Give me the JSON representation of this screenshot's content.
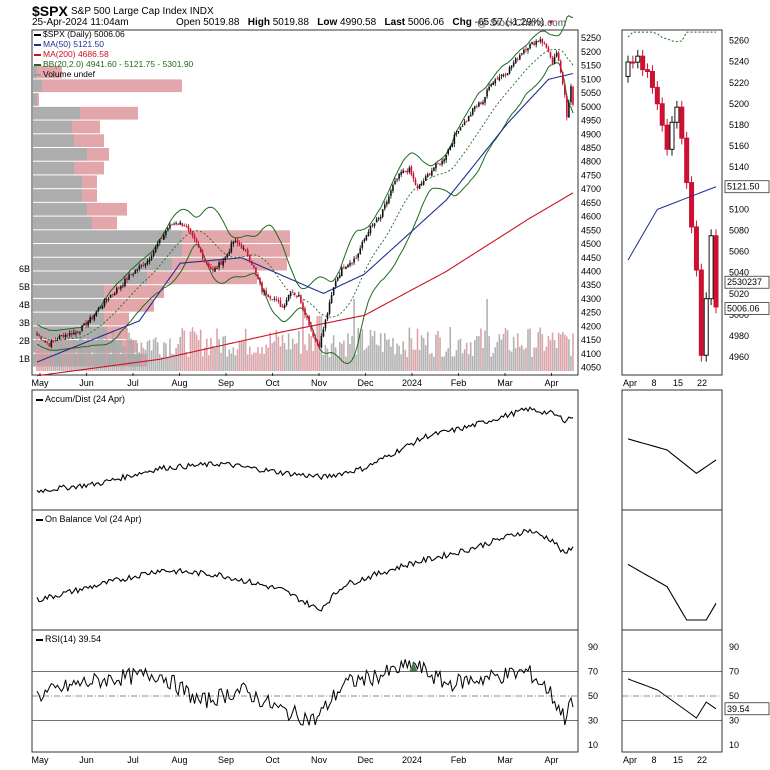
{
  "header": {
    "ticker": "$SPX",
    "description": "S&P 500 Large Cap Index",
    "exchange": "INDX",
    "datetime": "25-Apr-2024 11:04am",
    "open_label": "Open",
    "open": "5019.88",
    "high_label": "High",
    "high": "5019.88",
    "low_label": "Low",
    "low": "4990.58",
    "last_label": "Last",
    "last": "5006.06",
    "chg_label": "Chg",
    "chg": "-65.57 (-1.29%)",
    "chg_arrow": "▼",
    "watermark": "@ StockCharts.com"
  },
  "legend": [
    {
      "text": "$SPX (Daily) 5006.06",
      "color": "#000000"
    },
    {
      "text": "MA(50) 5121.50",
      "color": "#1f2f8f"
    },
    {
      "text": "MA(200) 4686.58",
      "color": "#cc1122"
    },
    {
      "text": "BB(20,2.0) 4941.60 - 5121.75 - 5301.90",
      "color": "#1e6b1e"
    },
    {
      "text": "Volume undef",
      "color": "#999999"
    }
  ],
  "panel_titles": {
    "ad": "Accum/Dist (24 Apr)",
    "obv": "On Balance Vol (24 Apr)",
    "rsi": "RSI(14) 39.54"
  },
  "value_tags": {
    "ma50": "5121.50",
    "last": "5006.06",
    "volume": "2530237"
  },
  "colors": {
    "up": "#111111",
    "down": "#cc1133",
    "ma50": "#1f2f8f",
    "ma200": "#cc1122",
    "bb": "#1e6b1e",
    "vol_up": "#aaaaaa",
    "vol_down": "#d89aa0"
  },
  "chart_data": {
    "type": "line",
    "title": "$SPX S&P 500 Large Cap Index",
    "x_labels_main": [
      "May",
      "Jun",
      "Jul",
      "Aug",
      "Sep",
      "Oct",
      "Nov",
      "Dec",
      "2024",
      "Feb",
      "Mar",
      "Apr"
    ],
    "x_labels_zoom": [
      "Apr",
      "8",
      "15",
      "22"
    ],
    "price_axis": {
      "min": 4030,
      "max": 5280,
      "ticks": [
        4050,
        4100,
        4150,
        4200,
        4250,
        4300,
        4350,
        4400,
        4450,
        4500,
        4550,
        4600,
        4650,
        4700,
        4750,
        4800,
        4850,
        4900,
        4950,
        5000,
        5050,
        5100,
        5150,
        5200,
        5250
      ]
    },
    "zoom_axis": {
      "min": 4945,
      "max": 5270,
      "ticks": [
        4960,
        4980,
        5000,
        5020,
        5040,
        5060,
        5080,
        5100,
        5120,
        5140,
        5160,
        5180,
        5200,
        5220,
        5240,
        5260
      ]
    },
    "volume_axis_labels": [
      "1B",
      "2B",
      "3B",
      "4B",
      "5B",
      "6B"
    ],
    "rsi_ticks": [
      10,
      30,
      50,
      70,
      90
    ],
    "close_anchors": [
      [
        0,
        4170
      ],
      [
        6,
        4135
      ],
      [
        12,
        4165
      ],
      [
        20,
        4180
      ],
      [
        26,
        4225
      ],
      [
        34,
        4300
      ],
      [
        40,
        4340
      ],
      [
        46,
        4390
      ],
      [
        54,
        4440
      ],
      [
        60,
        4510
      ],
      [
        64,
        4560
      ],
      [
        68,
        4580
      ],
      [
        72,
        4570
      ],
      [
        78,
        4500
      ],
      [
        82,
        4440
      ],
      [
        86,
        4400
      ],
      [
        92,
        4450
      ],
      [
        96,
        4510
      ],
      [
        100,
        4490
      ],
      [
        104,
        4450
      ],
      [
        110,
        4330
      ],
      [
        116,
        4300
      ],
      [
        120,
        4270
      ],
      [
        124,
        4330
      ],
      [
        128,
        4310
      ],
      [
        132,
        4230
      ],
      [
        136,
        4150
      ],
      [
        138,
        4130
      ],
      [
        142,
        4250
      ],
      [
        146,
        4370
      ],
      [
        150,
        4420
      ],
      [
        156,
        4450
      ],
      [
        162,
        4550
      ],
      [
        168,
        4600
      ],
      [
        174,
        4710
      ],
      [
        178,
        4760
      ],
      [
        182,
        4770
      ],
      [
        186,
        4700
      ],
      [
        190,
        4740
      ],
      [
        194,
        4780
      ],
      [
        198,
        4800
      ],
      [
        202,
        4860
      ],
      [
        206,
        4920
      ],
      [
        210,
        4950
      ],
      [
        214,
        5000
      ],
      [
        218,
        5020
      ],
      [
        222,
        5090
      ],
      [
        226,
        5110
      ],
      [
        230,
        5130
      ],
      [
        234,
        5170
      ],
      [
        238,
        5210
      ],
      [
        242,
        5230
      ],
      [
        246,
        5248
      ],
      [
        250,
        5205
      ],
      [
        252,
        5150
      ],
      [
        254,
        5199
      ],
      [
        256,
        5120
      ],
      [
        258,
        5050
      ],
      [
        259,
        4967
      ],
      [
        260,
        5022
      ],
      [
        261,
        5071
      ],
      [
        262,
        5006
      ]
    ],
    "ma50_anchors": [
      [
        0,
        4070
      ],
      [
        50,
        4220
      ],
      [
        70,
        4430
      ],
      [
        100,
        4450
      ],
      [
        140,
        4320
      ],
      [
        160,
        4390
      ],
      [
        200,
        4660
      ],
      [
        230,
        4940
      ],
      [
        250,
        5100
      ],
      [
        262,
        5121.5
      ]
    ],
    "ma200_anchors": [
      [
        0,
        4020
      ],
      [
        60,
        4080
      ],
      [
        120,
        4180
      ],
      [
        160,
        4240
      ],
      [
        200,
        4400
      ],
      [
        240,
        4590
      ],
      [
        262,
        4686.58
      ]
    ],
    "rsi_anchors": [
      [
        0,
        50
      ],
      [
        20,
        60
      ],
      [
        40,
        65
      ],
      [
        60,
        68
      ],
      [
        80,
        45
      ],
      [
        100,
        55
      ],
      [
        120,
        38
      ],
      [
        136,
        30
      ],
      [
        150,
        60
      ],
      [
        170,
        68
      ],
      [
        184,
        76
      ],
      [
        200,
        60
      ],
      [
        220,
        65
      ],
      [
        240,
        70
      ],
      [
        250,
        55
      ],
      [
        258,
        32
      ],
      [
        260,
        45
      ],
      [
        262,
        39.54
      ]
    ],
    "ad_anchors": [
      [
        0,
        10
      ],
      [
        30,
        18
      ],
      [
        60,
        35
      ],
      [
        90,
        40
      ],
      [
        120,
        30
      ],
      [
        140,
        25
      ],
      [
        160,
        35
      ],
      [
        190,
        70
      ],
      [
        210,
        80
      ],
      [
        240,
        100
      ],
      [
        252,
        95
      ],
      [
        258,
        88
      ],
      [
        262,
        92
      ]
    ],
    "obv_anchors": [
      [
        0,
        20
      ],
      [
        30,
        35
      ],
      [
        60,
        50
      ],
      [
        90,
        45
      ],
      [
        120,
        30
      ],
      [
        138,
        10
      ],
      [
        150,
        35
      ],
      [
        180,
        55
      ],
      [
        210,
        70
      ],
      [
        240,
        90
      ],
      [
        252,
        80
      ],
      [
        258,
        65
      ],
      [
        262,
        75
      ]
    ],
    "volume_by_price": [
      {
        "price": 4075,
        "up": 110,
        "down": 5
      },
      {
        "price": 4125,
        "up": 90,
        "down": 15
      },
      {
        "price": 4175,
        "up": 75,
        "down": 20
      },
      {
        "price": 4225,
        "up": 72,
        "down": 25
      },
      {
        "price": 4275,
        "up": 72,
        "down": 50
      },
      {
        "price": 4325,
        "up": 72,
        "down": 60
      },
      {
        "price": 4375,
        "up": 115,
        "down": 110
      },
      {
        "price": 4425,
        "up": 140,
        "down": 115
      },
      {
        "price": 4475,
        "up": 150,
        "down": 108
      },
      {
        "price": 4525,
        "up": 150,
        "down": 108
      },
      {
        "price": 4575,
        "up": 60,
        "down": 25
      },
      {
        "price": 4625,
        "up": 55,
        "down": 40
      },
      {
        "price": 4675,
        "up": 50,
        "down": 15
      },
      {
        "price": 4725,
        "up": 50,
        "down": 15
      },
      {
        "price": 4775,
        "up": 42,
        "down": 30
      },
      {
        "price": 4825,
        "up": 55,
        "down": 22
      },
      {
        "price": 4875,
        "up": 42,
        "down": 30
      },
      {
        "price": 4925,
        "up": 40,
        "down": 28
      },
      {
        "price": 4975,
        "up": 48,
        "down": 58
      },
      {
        "price": 5025,
        "up": 5,
        "down": 2
      },
      {
        "price": 5075,
        "up": 10,
        "down": 140
      },
      {
        "price": 5125,
        "up": 5,
        "down": 25
      }
    ]
  }
}
